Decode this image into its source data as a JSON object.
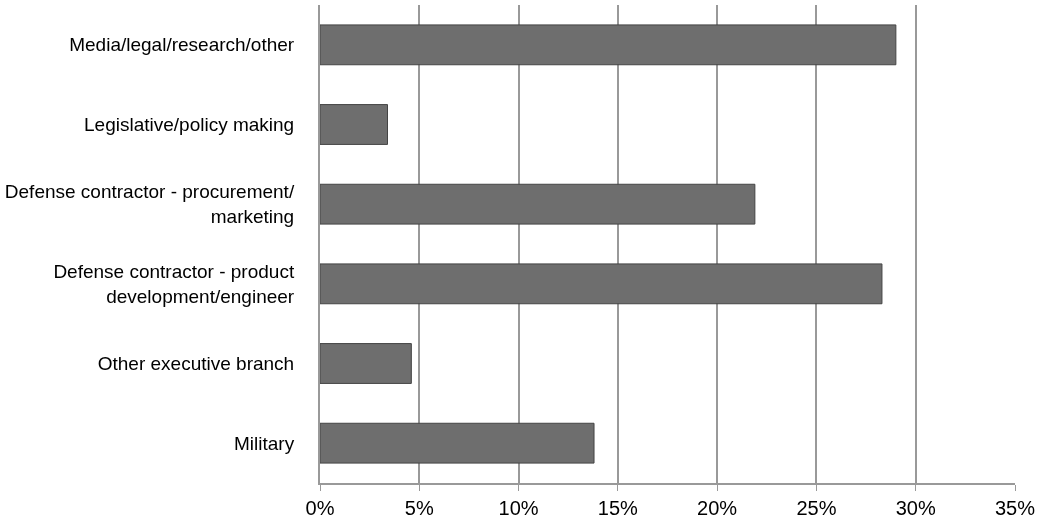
{
  "chart_data": {
    "type": "bar",
    "orientation": "horizontal",
    "categories": [
      "Media/legal/research/other",
      "Legislative/policy making",
      "Defense contractor - procurement/\nmarketing",
      "Defense contractor - product\ndevelopment/engineer",
      "Other executive branch",
      "Military"
    ],
    "values": [
      29.0,
      3.4,
      21.9,
      28.3,
      4.6,
      13.8
    ],
    "color": "#6e6e6e",
    "xlim": [
      0,
      35
    ],
    "xticks": [
      {
        "value": 0,
        "label": "0%"
      },
      {
        "value": 5,
        "label": "5%"
      },
      {
        "value": 10,
        "label": "10%"
      },
      {
        "value": 15,
        "label": "15%"
      },
      {
        "value": 20,
        "label": "20%"
      },
      {
        "value": 25,
        "label": "25%"
      },
      {
        "value": 30,
        "label": "30%"
      },
      {
        "value": 35,
        "label": "35%"
      }
    ],
    "grid": "x",
    "legend": false
  }
}
